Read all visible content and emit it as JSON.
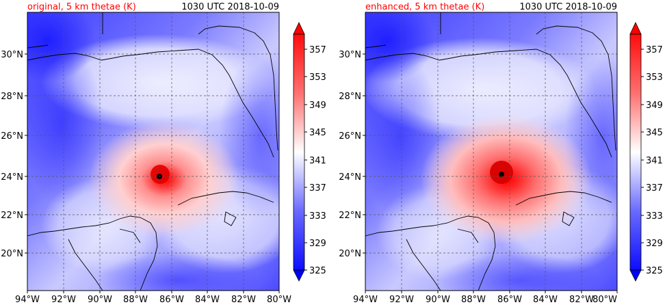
{
  "panels": [
    {
      "title": "original, 5 km thetae (K)",
      "timestamp": "1030 UTC 2018-10-09",
      "title_color": "#ff0000",
      "variant": "original"
    },
    {
      "title": "enhanced, 5 km thetae (K)",
      "timestamp": "1030 UTC 2018-10-09",
      "title_color": "#ff0000",
      "variant": "enhanced"
    }
  ],
  "axes": {
    "lon_ticks": [
      "94°W",
      "92°W",
      "90°W",
      "88°W",
      "86°W",
      "84°W",
      "82°W",
      "80°W"
    ],
    "lat_ticks": [
      "30°N",
      "28°N",
      "26°N",
      "24°N",
      "22°N",
      "20°N"
    ],
    "lon_range": [
      -94,
      -80
    ],
    "lat_range": [
      18.2,
      32.0
    ]
  },
  "colorbar": {
    "labels": [
      "357",
      "353",
      "349",
      "345",
      "341",
      "337",
      "333",
      "329",
      "325"
    ],
    "levels": [
      325,
      327,
      329,
      331,
      333,
      335,
      337,
      339,
      341,
      343,
      345,
      347,
      349,
      351,
      353,
      355,
      357
    ],
    "cmap": "bwr",
    "extend": "both"
  },
  "storm_center_marker": {
    "shape": "black dot"
  }
}
